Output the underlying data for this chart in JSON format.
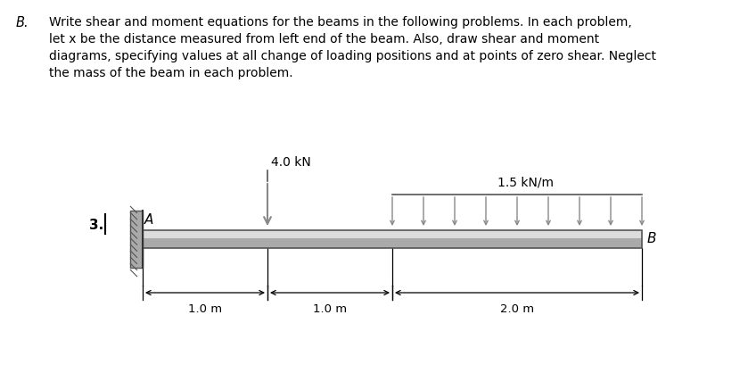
{
  "title_letter": "B.",
  "title_lines": [
    "Write shear and moment equations for the beams in the following problems. In each problem,",
    "let x be the distance measured from left end of the beam. Also, draw shear and moment",
    "diagrams, specifying values at all change of loading positions and at points of zero shear. Neglect",
    "the mass of the beam in each problem."
  ],
  "problem_number": "3.",
  "point_A_label": "A",
  "point_B_label": "B",
  "force_label": "4.0 kN",
  "dist_load_label": "1.5 kN/m",
  "dim1": "1.0 m",
  "dim2": "1.0 m",
  "dim3": "2.0 m",
  "background_color": "#ffffff",
  "text_color": "#000000",
  "arrow_color": "#888888",
  "dim_arrow_color": "#000000",
  "beam_fill_top": "#e8e8e8",
  "beam_fill_mid": "#c0c0c0",
  "beam_fill_bot": "#909090",
  "beam_edge_color": "#555555",
  "wall_color": "#aaaaaa",
  "wall_edge_color": "#555555"
}
